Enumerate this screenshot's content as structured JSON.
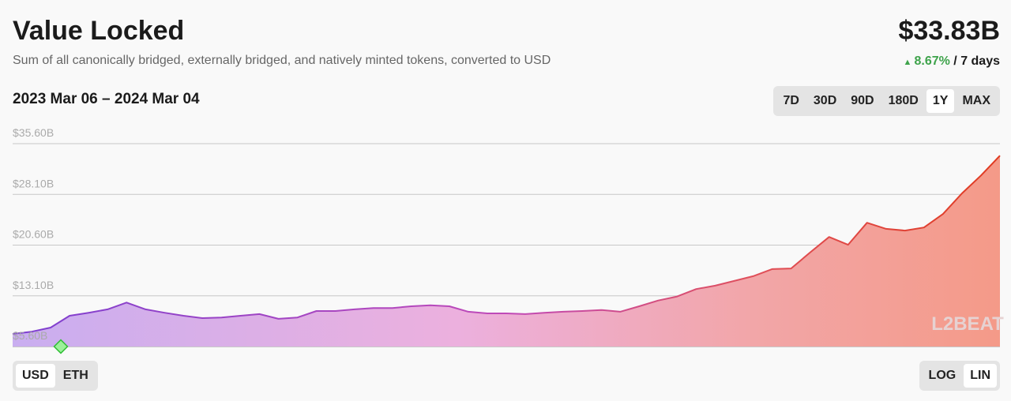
{
  "header": {
    "title": "Value Locked",
    "subtitle": "Sum of all canonically bridged, externally bridged, and natively minted tokens, converted to USD",
    "value": "$33.83B",
    "change": "8.67%",
    "change_period": "/ 7 days"
  },
  "range": "2023 Mar 06 – 2024 Mar 04",
  "range_buttons": [
    "7D",
    "30D",
    "90D",
    "180D",
    "1Y",
    "MAX"
  ],
  "currency_buttons": [
    "USD",
    "ETH"
  ],
  "scale_buttons": [
    "LOG",
    "LIN"
  ],
  "watermark": "L2BEAT",
  "chart_data": {
    "type": "area",
    "values": [
      7.47,
      7.8,
      8.4,
      10.15,
      10.6,
      11.1,
      12.1,
      11.1,
      10.6,
      10.15,
      9.8,
      9.9,
      10.15,
      10.4,
      9.7,
      9.9,
      10.85,
      10.85,
      11.1,
      11.3,
      11.3,
      11.55,
      11.7,
      11.55,
      10.75,
      10.5,
      10.5,
      10.4,
      10.6,
      10.75,
      10.85,
      11.0,
      10.75,
      11.55,
      12.4,
      13.0,
      14.1,
      14.6,
      15.3,
      16.0,
      17.05,
      17.15,
      19.5,
      21.8,
      20.65,
      23.9,
      23.0,
      22.75,
      23.2,
      25.2,
      28.25,
      30.9,
      33.83
    ],
    "ylim": [
      5.6,
      35.6
    ],
    "yticks": [
      {
        "value": 5.6,
        "label": "$5.60B"
      },
      {
        "value": 13.1,
        "label": "$13.10B"
      },
      {
        "value": 20.6,
        "label": "$20.60B"
      },
      {
        "value": 28.1,
        "label": "$28.10B"
      },
      {
        "value": 35.6,
        "label": "$35.60B"
      }
    ],
    "grid": true
  }
}
